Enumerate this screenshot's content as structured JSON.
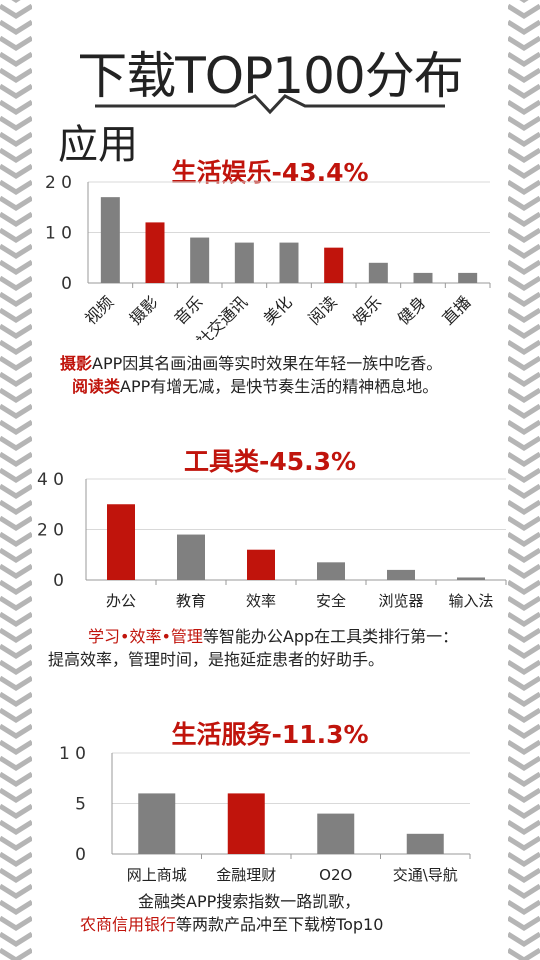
{
  "page": {
    "title": "下载TOP100分布",
    "section_label": "应用"
  },
  "colors": {
    "accent": "#c0140c",
    "bar_gray": "#808080",
    "bar_red": "#c0140c",
    "chevron": "#b5b5b5"
  },
  "chart_data": [
    {
      "type": "bar",
      "title": "生活娱乐-43.4%",
      "categories": [
        "视频",
        "摄影",
        "音乐",
        "社交通讯",
        "美化",
        "阅读",
        "娱乐",
        "健身",
        "直播"
      ],
      "values": [
        17,
        12,
        9,
        8,
        8,
        7,
        4,
        2,
        2
      ],
      "highlighted": [
        "摄影",
        "阅读"
      ],
      "yticks": [
        "2 0",
        "1 0",
        "0"
      ],
      "ylim": [
        0,
        20
      ],
      "grid": true
    },
    {
      "type": "bar",
      "title": "工具类-45.3%",
      "categories": [
        "办公",
        "教育",
        "效率",
        "安全",
        "浏览器",
        "输入法"
      ],
      "values": [
        30,
        18,
        12,
        7,
        4,
        1
      ],
      "highlighted": [
        "办公",
        "效率"
      ],
      "yticks": [
        "4 0",
        "2 0",
        "0"
      ],
      "ylim": [
        0,
        40
      ],
      "grid": true
    },
    {
      "type": "bar",
      "title": "生活服务-11.3%",
      "categories": [
        "网上商城",
        "金融理财",
        "O2O",
        "交通\\导航"
      ],
      "values": [
        6,
        6,
        4,
        2
      ],
      "highlighted": [
        "金融理财"
      ],
      "yticks": [
        "1 0",
        "5",
        "0"
      ],
      "ylim": [
        0,
        10
      ],
      "grid": true
    }
  ],
  "captions": {
    "c1_hl1": "摄影",
    "c1_t1": "APP因其名画油画等实时效果在年轻一族中吃香。",
    "c1_hl2": "阅读类",
    "c1_t2": "APP有增无减，是快节奏生活的精神栖息地。",
    "c2_hl1": "学习•效率•管理",
    "c2_t1": "等智能办公App在工具类排行第一：",
    "c2_t2": "提高效率，管理时间，是拖延症患者的好助手。",
    "c3_t1": "金融类APP搜索指数一路凯歌，",
    "c3_hl1": "农商信用银行",
    "c3_t2": "等两款产品冲至下载榜Top10"
  }
}
